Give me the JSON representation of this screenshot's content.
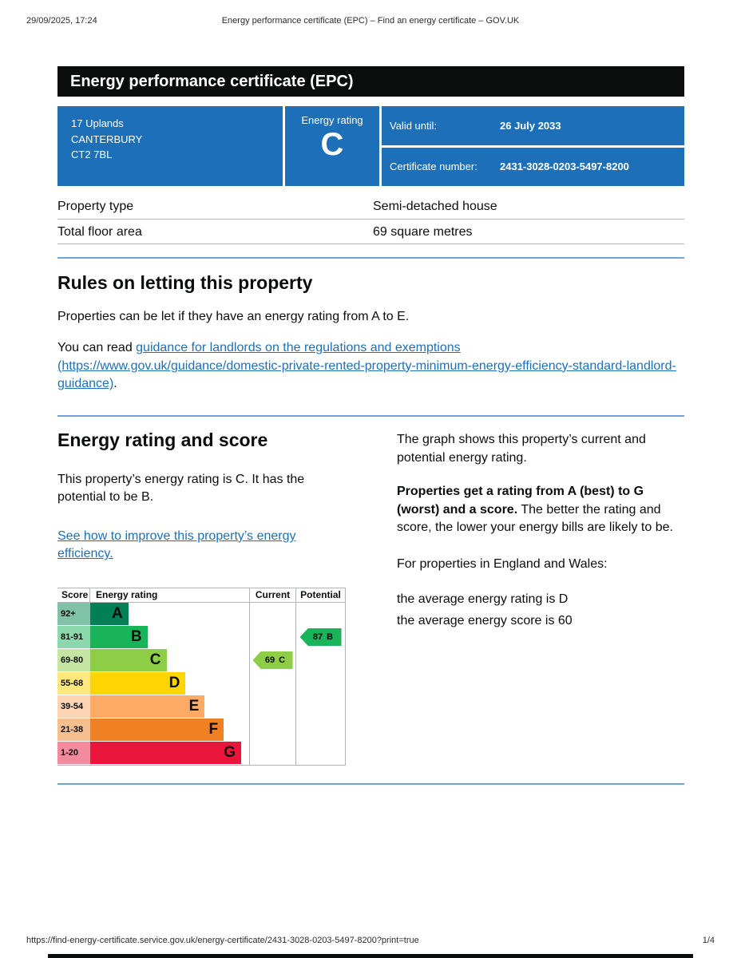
{
  "print_header": {
    "datetime": "29/09/2025, 17:24",
    "title": "Energy performance certificate (EPC) – Find an energy certificate – GOV.UK"
  },
  "banner": {
    "title": "Energy performance certificate (EPC)"
  },
  "summary": {
    "address_lines": [
      "17 Uplands",
      "CANTERBURY",
      "CT2 7BL"
    ],
    "energy_rating_label": "Energy rating",
    "energy_rating": "C",
    "valid_until_label": "Valid until:",
    "valid_until": "26 July 2033",
    "certificate_number_label": "Certificate number:",
    "certificate_number": "2431-3028-0203-5497-8200"
  },
  "property_table": {
    "rows": [
      {
        "label": "Property type",
        "value": "Semi-detached house"
      },
      {
        "label": "Total floor area",
        "value": "69 square metres"
      }
    ]
  },
  "rules_section": {
    "heading": "Rules on letting this property",
    "para1": "Properties can be let if they have an energy rating from A to E.",
    "para2_prefix": "You can read ",
    "link_text": "guidance for landlords on the regulations and exemptions (https://www.gov.uk/guidance/domestic-private-rented-property-minimum-energy-efficiency-standard-landlord-guidance)",
    "para2_suffix": "."
  },
  "rating_section": {
    "heading": "Energy rating and score",
    "para1": "This property’s energy rating is C. It has the potential to be B.",
    "improve_link": "See how to improve this property’s energy efficiency.",
    "right_para1": "The graph shows this property’s current and potential energy rating.",
    "right_para2_bold": "Properties get a rating from A (best) to G (worst) and a score.",
    "right_para2_rest": " The better the rating and score, the lower your energy bills are likely to be.",
    "right_para3": "For properties in England and Wales:",
    "average_rating_line": "the average energy rating is D",
    "average_score_line": "the average energy score is 60"
  },
  "chart_data": {
    "type": "bar",
    "title": "Energy rating and score",
    "headers": {
      "score": "Score",
      "rating": "Energy rating",
      "current": "Current",
      "potential": "Potential"
    },
    "bands": [
      {
        "score_range": "92+",
        "letter": "A",
        "color": "#008054",
        "tint": "#7fc2a8",
        "width_pct": 24
      },
      {
        "score_range": "81-91",
        "letter": "B",
        "color": "#19b459",
        "tint": "#8bd9ab",
        "width_pct": 36
      },
      {
        "score_range": "69-80",
        "letter": "C",
        "color": "#8dce46",
        "tint": "#c5e6a2",
        "width_pct": 48
      },
      {
        "score_range": "55-68",
        "letter": "D",
        "color": "#ffd500",
        "tint": "#ffe97f",
        "width_pct": 60
      },
      {
        "score_range": "39-54",
        "letter": "E",
        "color": "#fcaa65",
        "tint": "#fdd4b1",
        "width_pct": 72
      },
      {
        "score_range": "21-38",
        "letter": "F",
        "color": "#ef8023",
        "tint": "#f6bf90",
        "width_pct": 84
      },
      {
        "score_range": "1-20",
        "letter": "G",
        "color": "#e9153b",
        "tint": "#f48a9d",
        "width_pct": 95
      }
    ],
    "current": {
      "score": 69,
      "letter": "C",
      "color": "#8dce46"
    },
    "potential": {
      "score": 87,
      "letter": "B",
      "color": "#19b459"
    }
  },
  "colors": {
    "govuk_blue": "#1d70b8",
    "banner_black": "#0b0c0c",
    "divider_blue": "#71a4d4",
    "border_grey": "#b1b4b6",
    "link_blue": "#1d70b8"
  },
  "footer": {
    "url": "https://find-energy-certificate.service.gov.uk/energy-certificate/2431-3028-0203-5497-8200?print=true",
    "page": "1/4"
  }
}
